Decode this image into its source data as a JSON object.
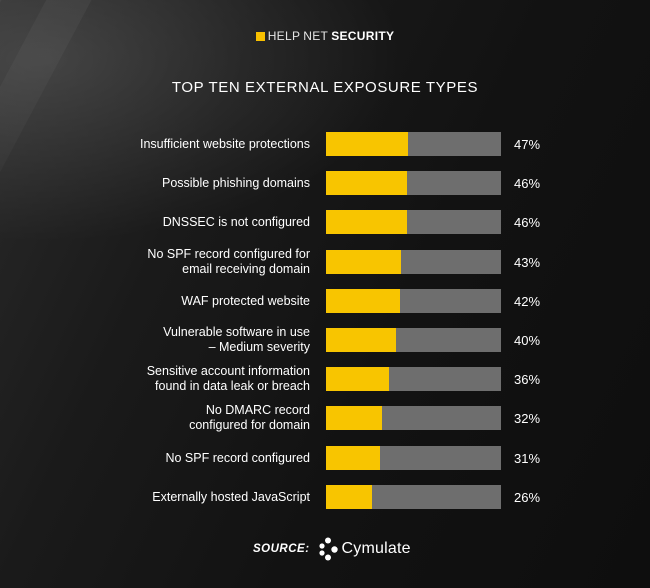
{
  "logo": {
    "part1": "HELP",
    "part2": "NET",
    "part3": "SECURITY"
  },
  "colors": {
    "bar_fill": "#f8c500",
    "bar_track": "#6e6e6e",
    "brand_mark": "#f8c000"
  },
  "chart_data": {
    "type": "bar",
    "orientation": "horizontal",
    "title": "TOP TEN EXTERNAL EXPOSURE TYPES",
    "xlabel": "",
    "ylabel": "",
    "xlim": [
      0,
      100
    ],
    "categories": [
      "Insufficient website protections",
      "Possible phishing domains",
      "DNSSEC is not configured",
      "No SPF record configured for\nemail receiving domain",
      "WAF protected website",
      "Vulnerable software in use\n– Medium severity",
      "Sensitive account information\nfound in data leak or breach",
      "No DMARC record\nconfigured for domain",
      "No SPF record configured",
      "Externally hosted JavaScript"
    ],
    "values": [
      47,
      46,
      46,
      43,
      42,
      40,
      36,
      32,
      31,
      26
    ],
    "value_labels": [
      "47%",
      "46%",
      "46%",
      "43%",
      "42%",
      "40%",
      "36%",
      "32%",
      "31%",
      "26%"
    ]
  },
  "source": {
    "label": "SOURCE:",
    "name": "Cymulate"
  }
}
